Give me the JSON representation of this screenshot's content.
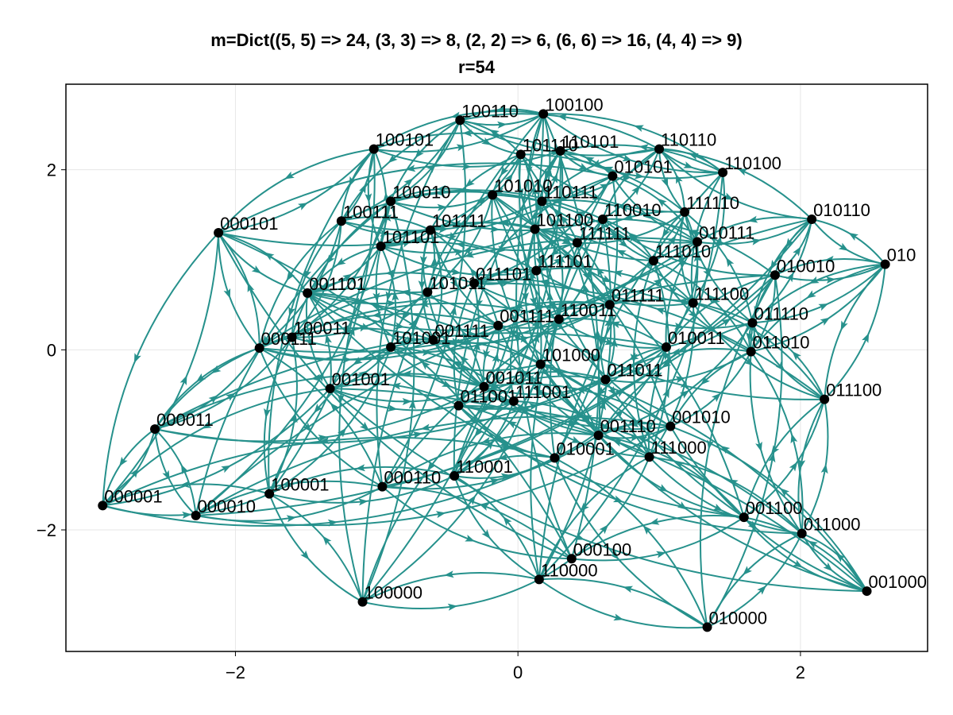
{
  "title_line1": "m=Dict((5, 5) => 24, (3, 3) => 8, (2, 2) => 6, (6, 6) => 16, (4, 4) => 9)",
  "title_line2": "r=54",
  "colors": {
    "edge": "#26918c",
    "node": "#000000",
    "grid": "#e6e6e6",
    "frame": "#000000"
  },
  "chart_data": {
    "type": "scatter",
    "xlim": [
      -3.2,
      2.9
    ],
    "ylim": [
      -3.35,
      2.95
    ],
    "grid": true,
    "x_ticks": [
      {
        "value": -2,
        "label": "−2"
      },
      {
        "value": 0,
        "label": "0"
      },
      {
        "value": 2,
        "label": "2"
      }
    ],
    "y_ticks": [
      {
        "value": -2,
        "label": "−2"
      },
      {
        "value": 0,
        "label": "0"
      },
      {
        "value": 2,
        "label": "2"
      }
    ],
    "nodes": [
      {
        "label": "100110",
        "x": -0.41,
        "y": 2.55
      },
      {
        "label": "100100",
        "x": 0.18,
        "y": 2.62
      },
      {
        "label": "100101",
        "x": -1.02,
        "y": 2.23
      },
      {
        "label": "101110",
        "x": 0.02,
        "y": 2.17
      },
      {
        "label": "110101",
        "x": 0.3,
        "y": 2.21
      },
      {
        "label": "110110",
        "x": 1.0,
        "y": 2.23
      },
      {
        "label": "110100",
        "x": 1.45,
        "y": 1.97
      },
      {
        "label": "010101",
        "x": 0.67,
        "y": 1.93
      },
      {
        "label": "100010",
        "x": -0.9,
        "y": 1.65
      },
      {
        "label": "101010",
        "x": -0.18,
        "y": 1.72
      },
      {
        "label": "110111",
        "x": 0.17,
        "y": 1.65
      },
      {
        "label": "111110",
        "x": 1.18,
        "y": 1.53
      },
      {
        "label": "010110",
        "x": 2.08,
        "y": 1.45
      },
      {
        "label": "000101",
        "x": -2.12,
        "y": 1.3
      },
      {
        "label": "100111",
        "x": -1.25,
        "y": 1.43
      },
      {
        "label": "101111",
        "x": -0.62,
        "y": 1.33
      },
      {
        "label": "101100",
        "x": 0.12,
        "y": 1.34
      },
      {
        "label": "110010",
        "x": 0.6,
        "y": 1.45
      },
      {
        "label": "111111",
        "x": 0.42,
        "y": 1.19
      },
      {
        "label": "010111",
        "x": 1.27,
        "y": 1.2
      },
      {
        "label": "101101",
        "x": -0.97,
        "y": 1.15
      },
      {
        "label": "111010",
        "x": 0.96,
        "y": 0.99
      },
      {
        "label": "010",
        "x": 2.6,
        "y": 0.95
      },
      {
        "label": "010010",
        "x": 1.82,
        "y": 0.83
      },
      {
        "label": "111101",
        "x": 0.13,
        "y": 0.88
      },
      {
        "label": "001101",
        "x": -1.49,
        "y": 0.63
      },
      {
        "label": "101011",
        "x": -0.64,
        "y": 0.64
      },
      {
        "label": "011101",
        "x": -0.31,
        "y": 0.74
      },
      {
        "label": "011111",
        "x": 0.65,
        "y": 0.5
      },
      {
        "label": "111100",
        "x": 1.24,
        "y": 0.52
      },
      {
        "label": "110011",
        "x": 0.29,
        "y": 0.34
      },
      {
        "label": "011110",
        "x": 1.66,
        "y": 0.3
      },
      {
        "label": "100011",
        "x": -1.6,
        "y": 0.14
      },
      {
        "label": "000111",
        "x": -1.83,
        "y": 0.02
      },
      {
        "label": "101001",
        "x": -0.9,
        "y": 0.03
      },
      {
        "label": "001111",
        "x": -0.6,
        "y": 0.11
      },
      {
        "label": "001111",
        "x": -0.14,
        "y": 0.27
      },
      {
        "label": "010011",
        "x": 1.05,
        "y": 0.03
      },
      {
        "label": "011010",
        "x": 1.65,
        "y": -0.02
      },
      {
        "label": "101000",
        "x": 0.16,
        "y": -0.16
      },
      {
        "label": "011011",
        "x": 0.62,
        "y": -0.33
      },
      {
        "label": "001001",
        "x": -1.33,
        "y": -0.43
      },
      {
        "label": "001011",
        "x": -0.24,
        "y": -0.41
      },
      {
        "label": "011001",
        "x": -0.42,
        "y": -0.62
      },
      {
        "label": "111001",
        "x": -0.03,
        "y": -0.57
      },
      {
        "label": "011100",
        "x": 2.17,
        "y": -0.55
      },
      {
        "label": "000011",
        "x": -2.57,
        "y": -0.88
      },
      {
        "label": "001110",
        "x": 0.57,
        "y": -0.95
      },
      {
        "label": "001010",
        "x": 1.08,
        "y": -0.85
      },
      {
        "label": "010001",
        "x": 0.26,
        "y": -1.2
      },
      {
        "label": "111000",
        "x": 0.93,
        "y": -1.19
      },
      {
        "label": "110001",
        "x": -0.45,
        "y": -1.4
      },
      {
        "label": "000110",
        "x": -0.96,
        "y": -1.52
      },
      {
        "label": "100001",
        "x": -1.76,
        "y": -1.6
      },
      {
        "label": "000001",
        "x": -2.94,
        "y": -1.73
      },
      {
        "label": "000010",
        "x": -2.28,
        "y": -1.84
      },
      {
        "label": "001100",
        "x": 1.6,
        "y": -1.86
      },
      {
        "label": "011000",
        "x": 2.01,
        "y": -2.04
      },
      {
        "label": "000100",
        "x": 0.38,
        "y": -2.32
      },
      {
        "label": "110000",
        "x": 0.15,
        "y": -2.55
      },
      {
        "label": "100000",
        "x": -1.1,
        "y": -2.8
      },
      {
        "label": "001000",
        "x": 2.47,
        "y": -2.68
      },
      {
        "label": "010000",
        "x": 1.34,
        "y": -3.08
      }
    ]
  }
}
